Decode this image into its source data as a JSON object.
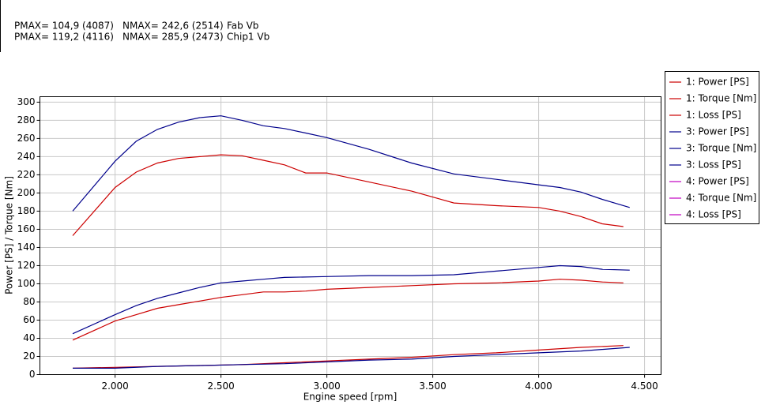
{
  "chart_data": {
    "type": "line",
    "annotations": [
      [
        "PMAX= 104,9 (4087)",
        "NMAX= 242,6 (2514)",
        "Fab Vb"
      ],
      [
        "PMAX= 119,2 (4116)",
        "NMAX= 285,9 (2473)",
        "Chip1 Vb"
      ]
    ],
    "xlabel": "Engine speed [rpm]",
    "ylabel": "Power [PS] / Torque [Nm]",
    "xlim": [
      1645,
      4578
    ],
    "ylim": [
      0,
      306
    ],
    "xticks": [
      {
        "value": 2000,
        "label": "2.000"
      },
      {
        "value": 2500,
        "label": "2.500"
      },
      {
        "value": 3000,
        "label": "3.000"
      },
      {
        "value": 3500,
        "label": "3.500"
      },
      {
        "value": 4000,
        "label": "4.000"
      },
      {
        "value": 4500,
        "label": "4.500"
      }
    ],
    "yticks": [
      0,
      20,
      40,
      60,
      80,
      100,
      120,
      140,
      160,
      180,
      200,
      220,
      240,
      260,
      280,
      300
    ],
    "grid": true,
    "legend": "right",
    "series": [
      {
        "name": "1: Power [PS]",
        "color": "#cc0000",
        "x": [
          1800,
          2000,
          2100,
          2200,
          2300,
          2400,
          2500,
          2600,
          2700,
          2800,
          2900,
          3000,
          3200,
          3400,
          3600,
          3800,
          4000,
          4100,
          4200,
          4300,
          4400
        ],
        "values": [
          38,
          59,
          66,
          73,
          77,
          81,
          85,
          88,
          91,
          91,
          92,
          94,
          96,
          98,
          100,
          101,
          103,
          105,
          104,
          102,
          101
        ]
      },
      {
        "name": "1: Torque [Nm]",
        "color": "#cc0000",
        "x": [
          1800,
          2000,
          2100,
          2200,
          2300,
          2400,
          2500,
          2600,
          2700,
          2800,
          2900,
          3000,
          3200,
          3400,
          3600,
          3800,
          4000,
          4100,
          4200,
          4300,
          4400
        ],
        "values": [
          153,
          206,
          223,
          233,
          238,
          240,
          242,
          241,
          236,
          231,
          222,
          222,
          212,
          202,
          189,
          186,
          184,
          180,
          174,
          166,
          163
        ]
      },
      {
        "name": "1: Loss [PS]",
        "color": "#cc0000",
        "x": [
          1800,
          2000,
          2200,
          2400,
          2600,
          2800,
          3000,
          3200,
          3400,
          3600,
          3800,
          4000,
          4200,
          4400
        ],
        "values": [
          7,
          8,
          9,
          10,
          11,
          13,
          15,
          17,
          19,
          22,
          24,
          27,
          30,
          32
        ]
      },
      {
        "name": "3: Power [PS]",
        "color": "#00008b",
        "x": [
          1800,
          2000,
          2100,
          2200,
          2300,
          2400,
          2500,
          2600,
          2700,
          2800,
          3000,
          3200,
          3400,
          3600,
          3800,
          4000,
          4100,
          4200,
          4300,
          4430
        ],
        "values": [
          45,
          66,
          76,
          84,
          90,
          96,
          101,
          103,
          105,
          107,
          108,
          109,
          109,
          110,
          114,
          118,
          120,
          119,
          116,
          115
        ]
      },
      {
        "name": "3: Torque [Nm]",
        "color": "#00008b",
        "x": [
          1800,
          2000,
          2100,
          2200,
          2300,
          2400,
          2500,
          2600,
          2700,
          2800,
          2900,
          3000,
          3200,
          3400,
          3600,
          3800,
          4000,
          4100,
          4200,
          4300,
          4430
        ],
        "values": [
          180,
          235,
          257,
          270,
          278,
          283,
          285,
          280,
          274,
          271,
          266,
          261,
          248,
          233,
          221,
          215,
          209,
          206,
          201,
          193,
          184
        ]
      },
      {
        "name": "3: Loss [PS]",
        "color": "#00008b",
        "x": [
          1800,
          2000,
          2200,
          2400,
          2600,
          2800,
          3000,
          3200,
          3400,
          3600,
          3800,
          4000,
          4200,
          4430
        ],
        "values": [
          7,
          7,
          9,
          10,
          11,
          12,
          14,
          16,
          17,
          20,
          22,
          24,
          26,
          30
        ]
      },
      {
        "name": "4: Power [PS]",
        "color": "#c000c0"
      },
      {
        "name": "4: Torque [Nm]",
        "color": "#c000c0"
      },
      {
        "name": "4: Loss [PS]",
        "color": "#c000c0"
      }
    ]
  }
}
